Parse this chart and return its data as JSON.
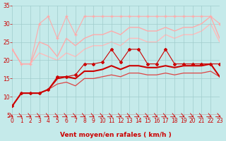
{
  "xlabel": "Vent moyen/en rafales ( km/h )",
  "xlim": [
    0,
    23
  ],
  "ylim": [
    5,
    35
  ],
  "yticks": [
    5,
    10,
    15,
    20,
    25,
    30,
    35
  ],
  "xticks": [
    0,
    1,
    2,
    3,
    4,
    5,
    6,
    7,
    8,
    9,
    10,
    11,
    12,
    13,
    14,
    15,
    16,
    17,
    18,
    19,
    20,
    21,
    22,
    23
  ],
  "background_color": "#c5eaea",
  "grid_color": "#a0cccc",
  "series": [
    {
      "label": "line1_marker",
      "x": [
        0,
        1,
        2,
        3,
        4,
        5,
        6,
        7,
        8,
        9,
        10,
        11,
        12,
        13,
        14,
        15,
        16,
        17,
        18,
        19,
        20,
        21,
        22,
        23
      ],
      "y": [
        7.5,
        11,
        11,
        11,
        12,
        15.5,
        15.5,
        16,
        19,
        19,
        19.5,
        23,
        19.5,
        23,
        23,
        19,
        19,
        23,
        19,
        19,
        19,
        19,
        19,
        19
      ],
      "color": "#cc0000",
      "linewidth": 0.8,
      "marker": "D",
      "markersize": 2.0,
      "zorder": 5
    },
    {
      "label": "line2_smooth",
      "x": [
        0,
        1,
        2,
        3,
        4,
        5,
        6,
        7,
        8,
        9,
        10,
        11,
        12,
        13,
        14,
        15,
        16,
        17,
        18,
        19,
        20,
        21,
        22,
        23
      ],
      "y": [
        7.5,
        11,
        11,
        11,
        12,
        15,
        15.5,
        15,
        17,
        17,
        17.5,
        18.5,
        17.5,
        18.5,
        18.5,
        18,
        18,
        18.5,
        18,
        18.5,
        18.5,
        18.5,
        19,
        15.5
      ],
      "color": "#cc0000",
      "linewidth": 1.5,
      "marker": null,
      "markersize": 0,
      "zorder": 4
    },
    {
      "label": "line3_lower",
      "x": [
        0,
        1,
        2,
        3,
        4,
        5,
        6,
        7,
        8,
        9,
        10,
        11,
        12,
        13,
        14,
        15,
        16,
        17,
        18,
        19,
        20,
        21,
        22,
        23
      ],
      "y": [
        7.5,
        11,
        11,
        11,
        12,
        13.5,
        14,
        13,
        15,
        15,
        15.5,
        16,
        15.5,
        16.5,
        16.5,
        16,
        16,
        16.5,
        16,
        16.5,
        16.5,
        16.5,
        17,
        15.5
      ],
      "color": "#dd4444",
      "linewidth": 0.9,
      "marker": null,
      "markersize": 0,
      "zorder": 3
    },
    {
      "label": "line4_top_marker",
      "x": [
        0,
        1,
        2,
        3,
        4,
        5,
        6,
        7,
        8,
        9,
        10,
        11,
        12,
        13,
        14,
        15,
        16,
        17,
        18,
        19,
        20,
        21,
        22,
        23
      ],
      "y": [
        23,
        19,
        19,
        30,
        32,
        26,
        32,
        27,
        32,
        32,
        32,
        32,
        32,
        32,
        32,
        32,
        32,
        32,
        32,
        32,
        32,
        32,
        32,
        30
      ],
      "color": "#ffaaaa",
      "linewidth": 0.8,
      "marker": "+",
      "markersize": 3.5,
      "zorder": 2
    },
    {
      "label": "line5_upper_smooth",
      "x": [
        0,
        1,
        2,
        3,
        4,
        5,
        6,
        7,
        8,
        9,
        10,
        11,
        12,
        13,
        14,
        15,
        16,
        17,
        18,
        19,
        20,
        21,
        22,
        23
      ],
      "y": [
        23,
        19,
        19,
        25,
        24,
        21,
        26,
        24,
        26,
        27,
        27,
        28,
        27,
        29,
        29,
        28,
        28,
        29,
        28,
        29,
        29,
        30,
        32,
        26
      ],
      "color": "#ffaaaa",
      "linewidth": 1.0,
      "marker": null,
      "markersize": 0,
      "zorder": 2
    },
    {
      "label": "line6_upper_lower",
      "x": [
        0,
        1,
        2,
        3,
        4,
        5,
        6,
        7,
        8,
        9,
        10,
        11,
        12,
        13,
        14,
        15,
        16,
        17,
        18,
        19,
        20,
        21,
        22,
        23
      ],
      "y": [
        23,
        19,
        19,
        22,
        21,
        20,
        22,
        21,
        23,
        24,
        24,
        25,
        24,
        26,
        26,
        25,
        25,
        27,
        26,
        27,
        27,
        28,
        30,
        25
      ],
      "color": "#ffbbbb",
      "linewidth": 1.0,
      "marker": null,
      "markersize": 0,
      "zorder": 1
    }
  ],
  "xlabel_color": "#cc0000",
  "xlabel_fontsize": 6.5,
  "tick_color": "#cc0000",
  "tick_fontsize": 5.5,
  "arrow_color": "#cc0000",
  "axis_line_color": "#cc0000"
}
